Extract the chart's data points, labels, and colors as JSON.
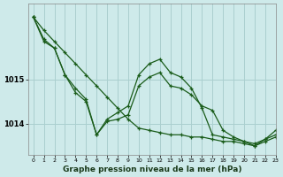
{
  "title": "Graphe pression niveau de la mer (hPa)",
  "background_color": "#ceeaea",
  "grid_color": "#aacfcf",
  "line_color": "#1a5c1a",
  "xlim": [
    -0.5,
    23
  ],
  "ylim": [
    1013.3,
    1016.7
  ],
  "yticks": [
    1014,
    1015
  ],
  "xticks": [
    0,
    1,
    2,
    3,
    4,
    5,
    6,
    7,
    8,
    9,
    10,
    11,
    12,
    13,
    14,
    15,
    16,
    17,
    18,
    19,
    20,
    21,
    22,
    23
  ],
  "lines": [
    {
      "x": [
        0,
        1,
        2,
        3,
        4,
        5,
        6,
        7,
        8,
        9,
        10,
        11,
        12,
        13,
        14,
        15,
        16,
        17,
        18,
        19,
        20,
        21,
        22,
        23
      ],
      "y": [
        1016.4,
        1016.1,
        1015.85,
        1015.6,
        1015.35,
        1015.1,
        1014.85,
        1014.6,
        1014.35,
        1014.1,
        1013.9,
        1013.85,
        1013.8,
        1013.75,
        1013.75,
        1013.7,
        1013.7,
        1013.65,
        1013.6,
        1013.6,
        1013.55,
        1013.5,
        1013.6,
        1013.7
      ]
    },
    {
      "x": [
        0,
        1,
        2,
        3,
        4,
        5,
        6,
        7,
        8,
        9,
        10,
        11,
        12,
        13,
        14,
        15,
        16,
        17,
        18,
        19,
        20,
        21,
        22,
        23
      ],
      "y": [
        1016.4,
        1015.85,
        1015.7,
        1015.1,
        1014.8,
        1014.55,
        1013.75,
        1014.05,
        1014.1,
        1014.2,
        1014.85,
        1015.05,
        1015.15,
        1014.85,
        1014.8,
        1014.65,
        1014.4,
        1014.3,
        1013.85,
        1013.7,
        1013.6,
        1013.55,
        1013.65,
        1013.75
      ]
    },
    {
      "x": [
        0,
        1,
        2,
        3,
        4,
        5,
        6,
        7,
        8,
        9,
        10,
        11,
        12,
        13,
        14,
        15,
        16,
        17,
        18,
        19,
        20,
        21,
        22,
        23
      ],
      "y": [
        1016.4,
        1015.9,
        1015.7,
        1015.1,
        1014.7,
        1014.5,
        1013.75,
        1014.1,
        1014.25,
        1014.4,
        1015.1,
        1015.35,
        1015.45,
        1015.15,
        1015.05,
        1014.8,
        1014.35,
        1013.75,
        1013.7,
        1013.65,
        1013.6,
        1013.5,
        1013.65,
        1013.85
      ]
    }
  ]
}
